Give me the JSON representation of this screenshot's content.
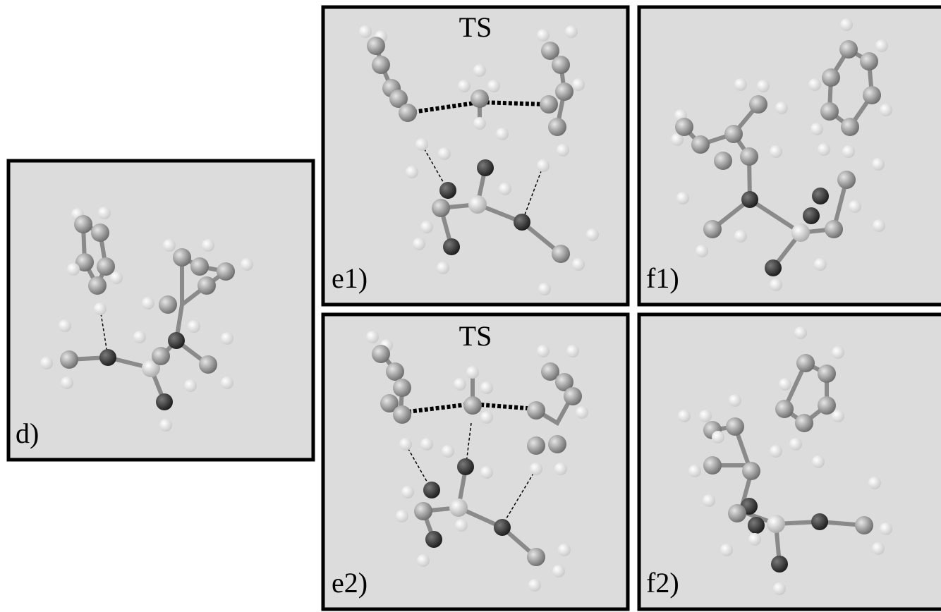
{
  "panels": {
    "d": {
      "label": "d)"
    },
    "e1": {
      "label": "e1)",
      "title": "TS"
    },
    "f1": {
      "label": "f1)"
    },
    "e2": {
      "label": "e2)",
      "title": "TS"
    },
    "f2": {
      "label": "f2)"
    }
  }
}
